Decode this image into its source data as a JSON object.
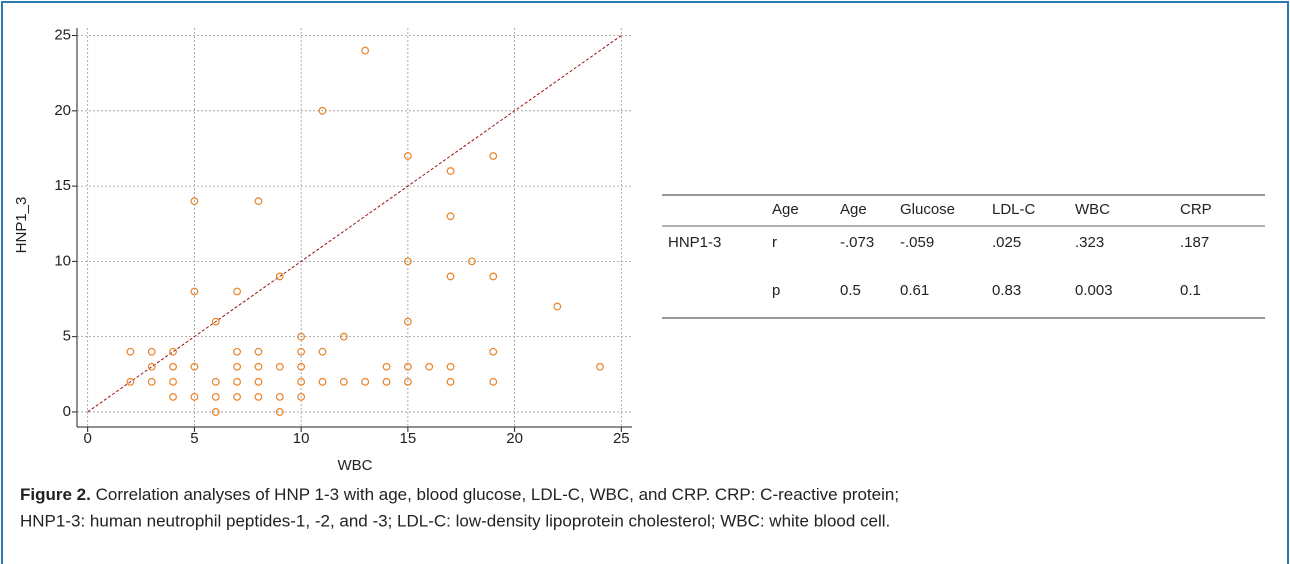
{
  "chart_data": {
    "type": "scatter",
    "xlabel": "WBC",
    "ylabel": "HNP1_3",
    "color": "#e8832a",
    "grid": true,
    "xlim": [
      -0.5,
      25.5
    ],
    "ylim": [
      -1,
      25.5
    ],
    "xticks": [
      0,
      5,
      10,
      15,
      20,
      25
    ],
    "yticks": [
      0,
      5,
      10,
      15,
      20,
      25
    ],
    "x": [
      2,
      2,
      3,
      3,
      3,
      4,
      4,
      4,
      4,
      5,
      5,
      5,
      5,
      6,
      6,
      6,
      6,
      7,
      7,
      7,
      7,
      7,
      8,
      8,
      8,
      8,
      8,
      9,
      9,
      9,
      9,
      10,
      10,
      10,
      10,
      10,
      11,
      11,
      11,
      12,
      12,
      13,
      13,
      14,
      14,
      15,
      15,
      15,
      15,
      15,
      16,
      17,
      17,
      17,
      17,
      17,
      18,
      19,
      19,
      19,
      19,
      22,
      24
    ],
    "values": [
      4,
      2,
      4,
      3,
      2,
      4,
      3,
      2,
      1,
      14,
      8,
      3,
      1,
      6,
      2,
      1,
      0,
      8,
      4,
      3,
      2,
      1,
      14,
      4,
      3,
      2,
      1,
      9,
      3,
      1,
      0,
      5,
      4,
      3,
      2,
      1,
      20,
      4,
      2,
      5,
      2,
      24,
      2,
      3,
      2,
      17,
      10,
      6,
      3,
      2,
      3,
      16,
      13,
      9,
      3,
      2,
      10,
      17,
      9,
      4,
      2,
      7,
      3
    ]
  },
  "table": {
    "columns": [
      "Age",
      "Age",
      "Glucose",
      "LDL-C",
      "WBC",
      "CRP"
    ],
    "row_label": "HNP1-3",
    "rows": [
      [
        "r",
        "-.073",
        "-.059",
        ".025",
        ".323",
        ".187"
      ],
      [
        "p",
        "0.5",
        "0.61",
        "0.83",
        "0.003",
        "0.1"
      ]
    ]
  },
  "caption": {
    "label": "Figure 2.",
    "lines": [
      "Correlation analyses of HNP 1-3 with age, blood glucose, LDL-C, WBC, and CRP. CRP: C-reactive protein;",
      "HNP1-3: human neutrophil peptides-1, -2, and -3; LDL-C: low-density lipoprotein cholesterol; WBC: white blood cell."
    ]
  }
}
